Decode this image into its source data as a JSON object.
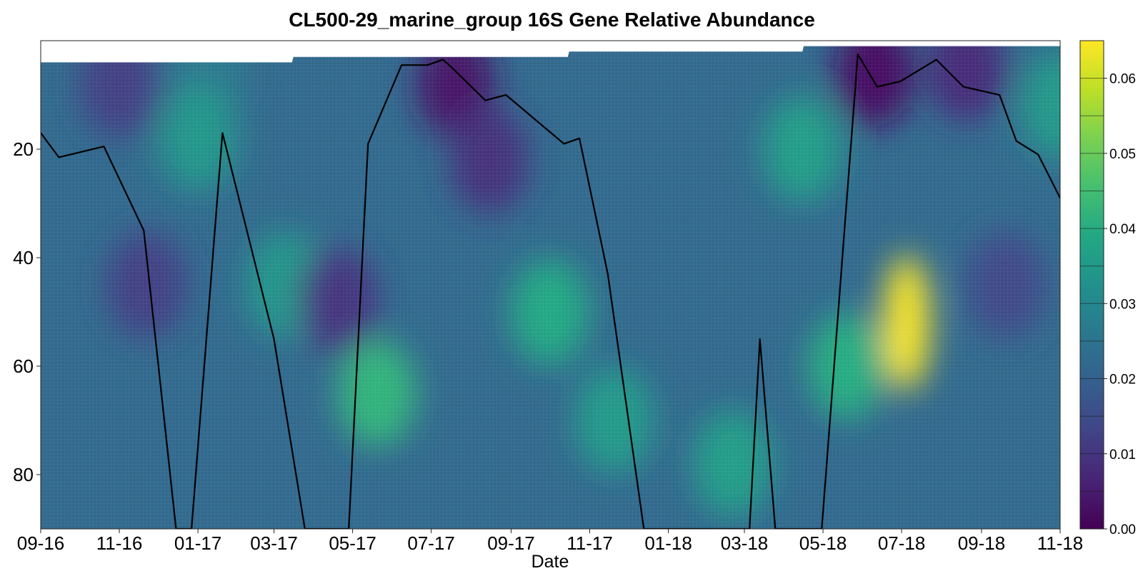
{
  "chart_data": {
    "type": "heatmap",
    "title": "CL500-29_marine_group 16S Gene Relative Abundance",
    "xlabel": "Date",
    "ylabel": "",
    "x_ticks": [
      "09-16",
      "11-16",
      "01-17",
      "03-17",
      "05-17",
      "07-17",
      "09-17",
      "11-17",
      "01-18",
      "03-18",
      "05-18",
      "07-18",
      "09-18",
      "11-18"
    ],
    "x_range": [
      "2016-09-01",
      "2018-11-01"
    ],
    "y_ticks": [
      20,
      40,
      60,
      80
    ],
    "ylim": [
      90,
      0
    ],
    "y_reversed": true,
    "colorbar": {
      "ticks": [
        "0.00",
        "0.01",
        "0.02",
        "0.03",
        "0.04",
        "0.05",
        "0.06"
      ],
      "range": [
        0,
        0.065
      ],
      "levels": 13,
      "colormap": "viridis"
    },
    "surface_depth": [
      {
        "date": "2016-09-01",
        "depth": 4
      },
      {
        "date": "2017-03-15",
        "depth": 4
      },
      {
        "date": "2017-03-16",
        "depth": 3
      },
      {
        "date": "2017-10-15",
        "depth": 3
      },
      {
        "date": "2017-10-16",
        "depth": 2
      },
      {
        "date": "2018-04-15",
        "depth": 2
      },
      {
        "date": "2018-04-16",
        "depth": 1
      },
      {
        "date": "2018-11-01",
        "depth": 1
      }
    ],
    "hotspots": [
      {
        "date": "2016-11-01",
        "depth": 8,
        "value": 0.012
      },
      {
        "date": "2016-11-22",
        "depth": 45,
        "value": 0.012
      },
      {
        "date": "2017-01-08",
        "depth": 5,
        "value": 0.026
      },
      {
        "date": "2017-01-01",
        "depth": 18,
        "value": 0.034
      },
      {
        "date": "2017-03-10",
        "depth": 45,
        "value": 0.034
      },
      {
        "date": "2017-04-20",
        "depth": 48,
        "value": 0.01
      },
      {
        "date": "2017-05-20",
        "depth": 65,
        "value": 0.042
      },
      {
        "date": "2017-07-20",
        "depth": 8,
        "value": 0.004
      },
      {
        "date": "2017-08-15",
        "depth": 22,
        "value": 0.009
      },
      {
        "date": "2017-10-01",
        "depth": 50,
        "value": 0.039
      },
      {
        "date": "2017-11-20",
        "depth": 70,
        "value": 0.035
      },
      {
        "date": "2018-02-20",
        "depth": 78,
        "value": 0.036
      },
      {
        "date": "2018-04-15",
        "depth": 20,
        "value": 0.036
      },
      {
        "date": "2018-05-20",
        "depth": 60,
        "value": 0.04
      },
      {
        "date": "2018-06-10",
        "depth": 6,
        "value": 0.003
      },
      {
        "date": "2018-07-05",
        "depth": 52,
        "value": 0.065
      },
      {
        "date": "2018-08-20",
        "depth": 5,
        "value": 0.008
      },
      {
        "date": "2018-09-20",
        "depth": 45,
        "value": 0.014
      },
      {
        "date": "2018-11-01",
        "depth": 12,
        "value": 0.035
      }
    ],
    "series": [
      {
        "type": "line",
        "color": "#000000",
        "points": [
          {
            "date": "2016-09-01",
            "depth": 17
          },
          {
            "date": "2016-09-15",
            "depth": 21.5
          },
          {
            "date": "2016-10-20",
            "depth": 19.5
          },
          {
            "date": "2016-11-20",
            "depth": 35
          },
          {
            "date": "2016-12-15",
            "depth": 90
          },
          {
            "date": "2016-12-27",
            "depth": 90
          },
          {
            "date": "2017-01-20",
            "depth": 17
          },
          {
            "date": "2017-03-01",
            "depth": 55
          },
          {
            "date": "2017-03-25",
            "depth": 90
          },
          {
            "date": "2017-04-28",
            "depth": 90
          },
          {
            "date": "2017-05-13",
            "depth": 19
          },
          {
            "date": "2017-06-08",
            "depth": 4.5
          },
          {
            "date": "2017-06-28",
            "depth": 4.5
          },
          {
            "date": "2017-07-10",
            "depth": 3.5
          },
          {
            "date": "2017-07-15",
            "depth": 4.5
          },
          {
            "date": "2017-08-12",
            "depth": 11
          },
          {
            "date": "2017-08-28",
            "depth": 10
          },
          {
            "date": "2017-10-12",
            "depth": 19
          },
          {
            "date": "2017-10-24",
            "depth": 18
          },
          {
            "date": "2017-11-15",
            "depth": 43
          },
          {
            "date": "2017-12-13",
            "depth": 90
          },
          {
            "date": "2018-03-05",
            "depth": 90
          },
          {
            "date": "2018-03-13",
            "depth": 55
          },
          {
            "date": "2018-03-25",
            "depth": 90
          },
          {
            "date": "2018-04-30",
            "depth": 90
          },
          {
            "date": "2018-05-28",
            "depth": 2.5
          },
          {
            "date": "2018-06-12",
            "depth": 8.5
          },
          {
            "date": "2018-06-30",
            "depth": 7.5
          },
          {
            "date": "2018-07-28",
            "depth": 3.5
          },
          {
            "date": "2018-08-18",
            "depth": 8.5
          },
          {
            "date": "2018-09-15",
            "depth": 10
          },
          {
            "date": "2018-09-28",
            "depth": 18.5
          },
          {
            "date": "2018-10-15",
            "depth": 21
          },
          {
            "date": "2018-11-01",
            "depth": 29
          }
        ]
      }
    ]
  }
}
